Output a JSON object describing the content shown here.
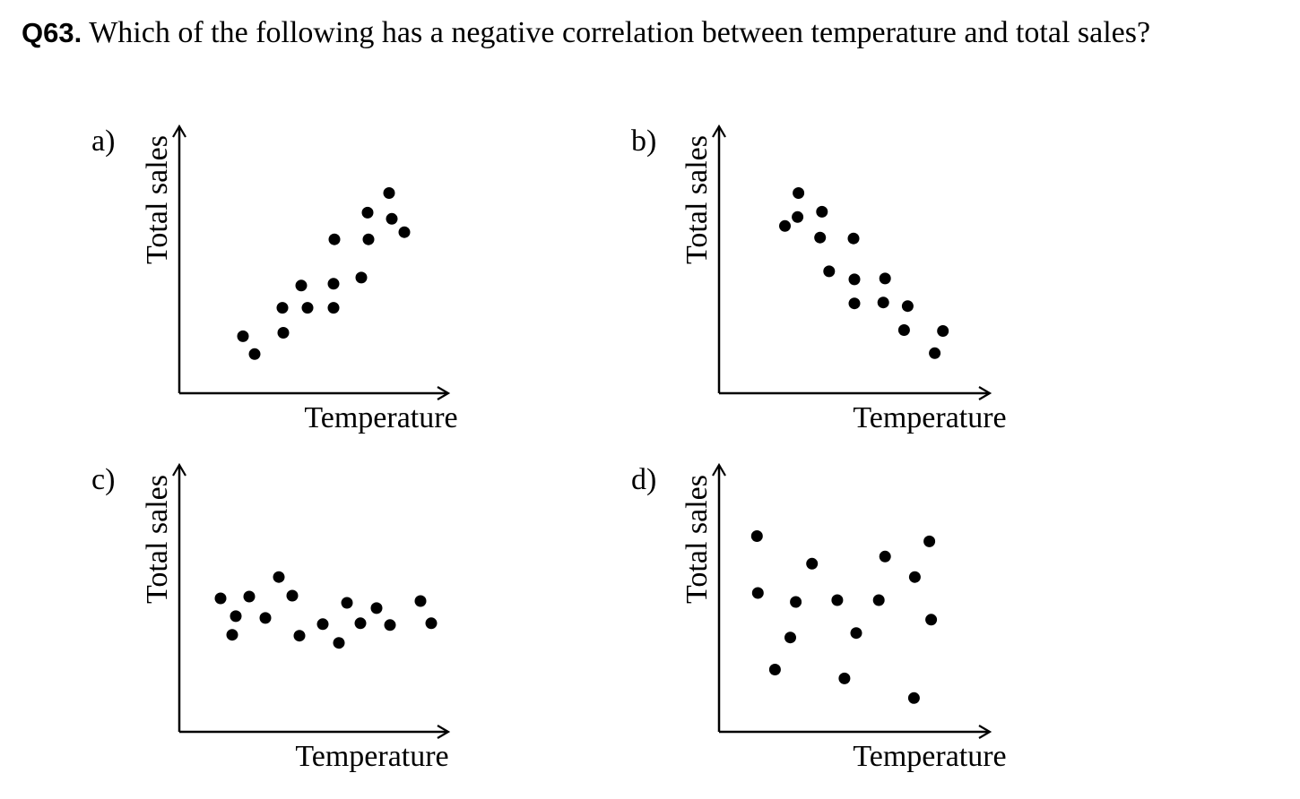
{
  "question": {
    "number": "Q63.",
    "text": "Which of the following has a negative correlation between temperature and total sales?"
  },
  "colors": {
    "ink": "#000000",
    "background": "#ffffff"
  },
  "chart_data": [
    {
      "type": "scatter",
      "label": "a)",
      "xlabel": "Temperature",
      "ylabel": "Total sales",
      "xlim": [
        0,
        300
      ],
      "ylim": [
        0,
        300
      ],
      "grid": false,
      "legend": "none",
      "points": [
        {
          "x": 71,
          "y": 64
        },
        {
          "x": 84,
          "y": 44
        },
        {
          "x": 115,
          "y": 96
        },
        {
          "x": 116,
          "y": 68
        },
        {
          "x": 136,
          "y": 121
        },
        {
          "x": 143,
          "y": 96
        },
        {
          "x": 172,
          "y": 123
        },
        {
          "x": 172,
          "y": 96
        },
        {
          "x": 173,
          "y": 173
        },
        {
          "x": 203,
          "y": 130
        },
        {
          "x": 210,
          "y": 203
        },
        {
          "x": 211,
          "y": 173
        },
        {
          "x": 234,
          "y": 225
        },
        {
          "x": 237,
          "y": 196
        },
        {
          "x": 251,
          "y": 181
        }
      ]
    },
    {
      "type": "scatter",
      "label": "b)",
      "xlabel": "Temperature",
      "ylabel": "Total sales",
      "xlim": [
        0,
        300
      ],
      "ylim": [
        0,
        300
      ],
      "grid": false,
      "legend": "none",
      "points": [
        {
          "x": 73,
          "y": 188
        },
        {
          "x": 87,
          "y": 198
        },
        {
          "x": 88,
          "y": 225
        },
        {
          "x": 114,
          "y": 204
        },
        {
          "x": 112,
          "y": 175
        },
        {
          "x": 122,
          "y": 137
        },
        {
          "x": 149,
          "y": 174
        },
        {
          "x": 150,
          "y": 128
        },
        {
          "x": 150,
          "y": 101
        },
        {
          "x": 184,
          "y": 129
        },
        {
          "x": 182,
          "y": 102
        },
        {
          "x": 209,
          "y": 98
        },
        {
          "x": 205,
          "y": 71
        },
        {
          "x": 239,
          "y": 45
        },
        {
          "x": 248,
          "y": 70
        }
      ]
    },
    {
      "type": "scatter",
      "label": "c)",
      "xlabel": "Temperature",
      "ylabel": "Total sales",
      "xlim": [
        0,
        300
      ],
      "ylim": [
        0,
        300
      ],
      "grid": false,
      "legend": "none",
      "points": [
        {
          "x": 46,
          "y": 150
        },
        {
          "x": 63,
          "y": 130
        },
        {
          "x": 59,
          "y": 109
        },
        {
          "x": 78,
          "y": 152
        },
        {
          "x": 96,
          "y": 128
        },
        {
          "x": 111,
          "y": 174
        },
        {
          "x": 126,
          "y": 153
        },
        {
          "x": 134,
          "y": 108
        },
        {
          "x": 160,
          "y": 121
        },
        {
          "x": 178,
          "y": 100
        },
        {
          "x": 187,
          "y": 145
        },
        {
          "x": 202,
          "y": 122
        },
        {
          "x": 220,
          "y": 139
        },
        {
          "x": 235,
          "y": 120
        },
        {
          "x": 269,
          "y": 147
        },
        {
          "x": 281,
          "y": 122
        }
      ]
    },
    {
      "type": "scatter",
      "label": "d)",
      "xlabel": "Temperature",
      "ylabel": "Total sales",
      "xlim": [
        0,
        300
      ],
      "ylim": [
        0,
        300
      ],
      "grid": false,
      "legend": "none",
      "points": [
        {
          "x": 42,
          "y": 220
        },
        {
          "x": 43,
          "y": 156
        },
        {
          "x": 62,
          "y": 70
        },
        {
          "x": 79,
          "y": 106
        },
        {
          "x": 85,
          "y": 146
        },
        {
          "x": 103,
          "y": 189
        },
        {
          "x": 131,
          "y": 148
        },
        {
          "x": 139,
          "y": 60
        },
        {
          "x": 152,
          "y": 111
        },
        {
          "x": 177,
          "y": 148
        },
        {
          "x": 184,
          "y": 197
        },
        {
          "x": 216,
          "y": 38
        },
        {
          "x": 217,
          "y": 174
        },
        {
          "x": 233,
          "y": 214
        },
        {
          "x": 235,
          "y": 126
        }
      ]
    }
  ]
}
